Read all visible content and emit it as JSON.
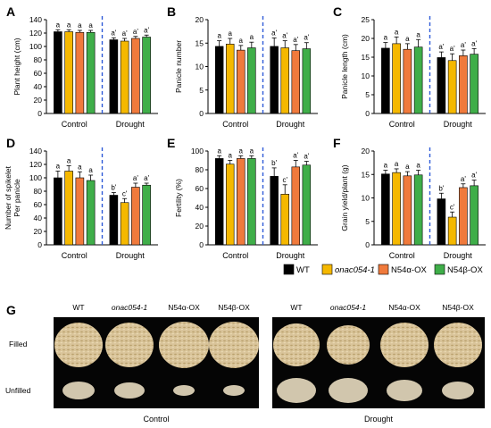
{
  "figure": {
    "colors": {
      "WT": "#000000",
      "onac054-1": "#f5b800",
      "N54a-OX": "#f07a3c",
      "N54b-OX": "#3fae49",
      "divider": "#2f5bd8"
    }
  },
  "chart_data": [
    {
      "panel": "A",
      "type": "bar",
      "categories": [
        "Control",
        "Drought"
      ],
      "series_names": [
        "WT",
        "onac054-1",
        "N54α-OX",
        "N54β-OX"
      ],
      "values": [
        [
          122,
          122,
          121,
          121
        ],
        [
          110,
          108,
          112,
          114
        ]
      ],
      "errors": [
        [
          3,
          3,
          3,
          3
        ],
        [
          3,
          4,
          3,
          3
        ]
      ],
      "labels": [
        [
          "a",
          "a",
          "a",
          "a"
        ],
        [
          "a'",
          "a'",
          "a'",
          "a'"
        ]
      ],
      "ylabel": "Plant height (cm)",
      "ylim": [
        0,
        140
      ],
      "yticks": [
        0,
        20,
        40,
        60,
        80,
        100,
        120,
        140
      ]
    },
    {
      "panel": "B",
      "type": "bar",
      "categories": [
        "Control",
        "Drought"
      ],
      "series_names": [
        "WT",
        "onac054-1",
        "N54α-OX",
        "N54β-OX"
      ],
      "values": [
        [
          14.3,
          14.8,
          13.5,
          14.0
        ],
        [
          14.3,
          14.0,
          13.4,
          13.8
        ]
      ],
      "errors": [
        [
          1.2,
          1.2,
          1.0,
          1.2
        ],
        [
          1.8,
          1.5,
          1.3,
          1.3
        ]
      ],
      "labels": [
        [
          "a",
          "a",
          "a",
          "a"
        ],
        [
          "a'",
          "a'",
          "a'",
          "a'"
        ]
      ],
      "ylabel": "Panicle number",
      "ylim": [
        0,
        20
      ],
      "yticks": [
        0,
        5,
        10,
        15,
        20
      ]
    },
    {
      "panel": "C",
      "type": "bar",
      "categories": [
        "Control",
        "Drought"
      ],
      "series_names": [
        "WT",
        "onac054-1",
        "N54α-OX",
        "N54β-OX"
      ],
      "values": [
        [
          17.4,
          18.6,
          17.1,
          17.7
        ],
        [
          14.9,
          14.1,
          15.4,
          15.8
        ]
      ],
      "errors": [
        [
          1.5,
          1.8,
          1.5,
          2.0
        ],
        [
          1.5,
          1.8,
          1.5,
          1.5
        ]
      ],
      "labels": [
        [
          "a",
          "a",
          "a",
          "a"
        ],
        [
          "a'",
          "a'",
          "a'",
          "a'"
        ]
      ],
      "ylabel": "Panicle length (cm)",
      "ylim": [
        0,
        25
      ],
      "yticks": [
        0,
        5,
        10,
        15,
        20,
        25
      ]
    },
    {
      "panel": "D",
      "type": "bar",
      "categories": [
        "Control",
        "Drought"
      ],
      "series_names": [
        "WT",
        "onac054-1",
        "N54α-OX",
        "N54β-OX"
      ],
      "values": [
        [
          100,
          110,
          100,
          96
        ],
        [
          74,
          63,
          86,
          89
        ]
      ],
      "errors": [
        [
          10,
          8,
          9,
          8
        ],
        [
          4,
          6,
          6,
          3
        ]
      ],
      "labels": [
        [
          "a",
          "a",
          "a",
          "a"
        ],
        [
          "b'",
          "c'",
          "a'",
          "a'"
        ]
      ],
      "ylabel": "Number of spikelet\nPer panicle",
      "ylim": [
        0,
        140
      ],
      "yticks": [
        0,
        20,
        40,
        60,
        80,
        100,
        120,
        140
      ]
    },
    {
      "panel": "E",
      "type": "bar",
      "categories": [
        "Control",
        "Drought"
      ],
      "series_names": [
        "WT",
        "onac054-1",
        "N54α-OX",
        "N54β-OX"
      ],
      "values": [
        [
          92,
          86,
          92,
          92
        ],
        [
          73,
          54,
          83,
          85
        ]
      ],
      "errors": [
        [
          3,
          4,
          3,
          3
        ],
        [
          9,
          10,
          7,
          4
        ]
      ],
      "labels": [
        [
          "a",
          "a",
          "a",
          "a"
        ],
        [
          "b'",
          "c'",
          "a'",
          "a'"
        ]
      ],
      "ylabel": "Fertility (%)",
      "ylim": [
        0,
        100
      ],
      "yticks": [
        0,
        20,
        40,
        60,
        80,
        100
      ]
    },
    {
      "panel": "F",
      "type": "bar",
      "categories": [
        "Control",
        "Drought"
      ],
      "series_names": [
        "WT",
        "onac054-1",
        "N54α-OX",
        "N54β-OX"
      ],
      "values": [
        [
          15.1,
          15.4,
          14.7,
          14.9
        ],
        [
          9.8,
          5.9,
          12.2,
          12.6
        ]
      ],
      "errors": [
        [
          0.8,
          0.8,
          0.9,
          1.0
        ],
        [
          1.2,
          1.1,
          0.8,
          1.2
        ]
      ],
      "labels": [
        [
          "a",
          "a",
          "a",
          "a"
        ],
        [
          "b'",
          "c'",
          "a'",
          "a'"
        ]
      ],
      "ylabel": "Grain yield/plant (g)",
      "ylim": [
        0,
        20
      ],
      "yticks": [
        0,
        5,
        10,
        15,
        20
      ]
    }
  ],
  "legend": [
    {
      "label": "WT",
      "color": "#000000",
      "italic": false
    },
    {
      "label": "onac054-1",
      "color": "#f5b800",
      "italic": true
    },
    {
      "label": "N54α-OX",
      "color": "#f07a3c",
      "italic": false
    },
    {
      "label": "N54β-OX",
      "color": "#3fae49",
      "italic": false
    }
  ],
  "photo_panel": {
    "letter": "G",
    "col_labels": [
      "WT",
      "onac054-1",
      "N54α-OX",
      "N54β-OX"
    ],
    "row_labels": [
      "Filled",
      "Unfilled"
    ],
    "group_labels": [
      "Control",
      "Drought"
    ]
  }
}
